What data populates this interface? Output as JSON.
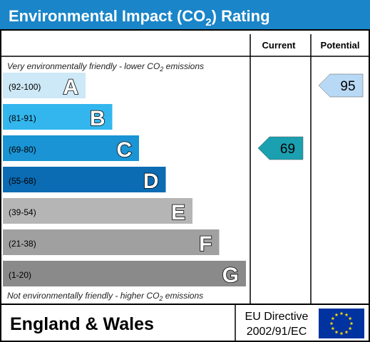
{
  "title_parts": [
    "Environmental Impact (CO",
    "2",
    ") Rating"
  ],
  "columns": {
    "current": "Current",
    "potential": "Potential"
  },
  "top_note_parts": [
    "Very environmentally friendly - lower CO",
    "2",
    " emissions"
  ],
  "bottom_note_parts": [
    "Not environmentally friendly - higher CO",
    "2",
    " emissions"
  ],
  "bands": [
    {
      "range": "(92-100)",
      "letter": "A",
      "color": "#cde8f6"
    },
    {
      "range": "(81-91)",
      "letter": "B",
      "color": "#33b6ee"
    },
    {
      "range": "(69-80)",
      "letter": "C",
      "color": "#1a94d4"
    },
    {
      "range": "(55-68)",
      "letter": "D",
      "color": "#0b6bb3"
    },
    {
      "range": "(39-54)",
      "letter": "E",
      "color": "#b5b5b5"
    },
    {
      "range": "(21-38)",
      "letter": "F",
      "color": "#a0a0a0"
    },
    {
      "range": "(1-20)",
      "letter": "G",
      "color": "#8a8a8a"
    }
  ],
  "current": {
    "value": "69",
    "band": "C",
    "color": "#1aa0b0"
  },
  "potential": {
    "value": "95",
    "band": "A",
    "color": "#b8d9f5"
  },
  "footer": {
    "region": "England & Wales",
    "directive_line1": "EU Directive",
    "directive_line2": "2002/91/EC"
  },
  "colors": {
    "header": "#1a85c8",
    "border": "#000000",
    "flag": "#0033a0",
    "stars": "#ffdd00"
  }
}
